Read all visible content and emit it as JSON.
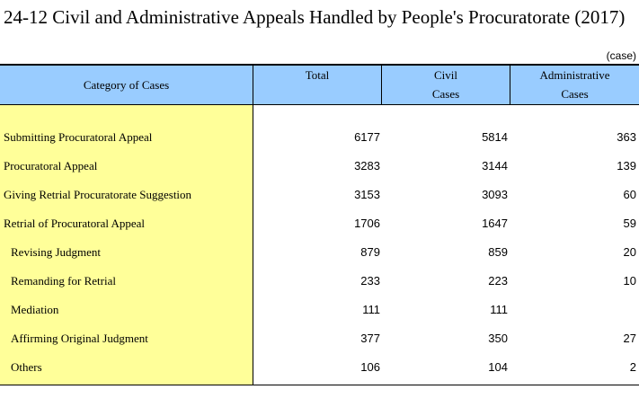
{
  "title": "24-12  Civil and Administrative Appeals Handled by People's Procuratorate (2017)",
  "unit": "(case)",
  "headers": {
    "category": "Category of Cases",
    "total": "Total",
    "civil_line1": "Civil",
    "civil_line2": "Cases",
    "admin_line1": "Administrative",
    "admin_line2": "Cases"
  },
  "rows": [
    {
      "label": "Submitting Procuratoral Appeal",
      "total": "6177",
      "civil": "5814",
      "admin": "363"
    },
    {
      "label": "Procuratoral Appeal",
      "total": "3283",
      "civil": "3144",
      "admin": "139"
    },
    {
      "label": "Giving Retrial Procuratorate Suggestion",
      "total": "3153",
      "civil": "3093",
      "admin": "60"
    },
    {
      "label": "Retrial of Procuratoral Appeal",
      "total": "1706",
      "civil": "1647",
      "admin": "59"
    },
    {
      "label": "Revising Judgment",
      "total": "879",
      "civil": "859",
      "admin": "20"
    },
    {
      "label": "Remanding for Retrial",
      "total": "233",
      "civil": "223",
      "admin": "10"
    },
    {
      "label": "Mediation",
      "total": "111",
      "civil": "111",
      "admin": ""
    },
    {
      "label": "Affirming Original Judgment",
      "total": "377",
      "civil": "350",
      "admin": "27"
    },
    {
      "label": "Others",
      "total": "106",
      "civil": "104",
      "admin": "2"
    }
  ],
  "colors": {
    "header_bg": "#99ccff",
    "category_bg": "#ffff99"
  }
}
